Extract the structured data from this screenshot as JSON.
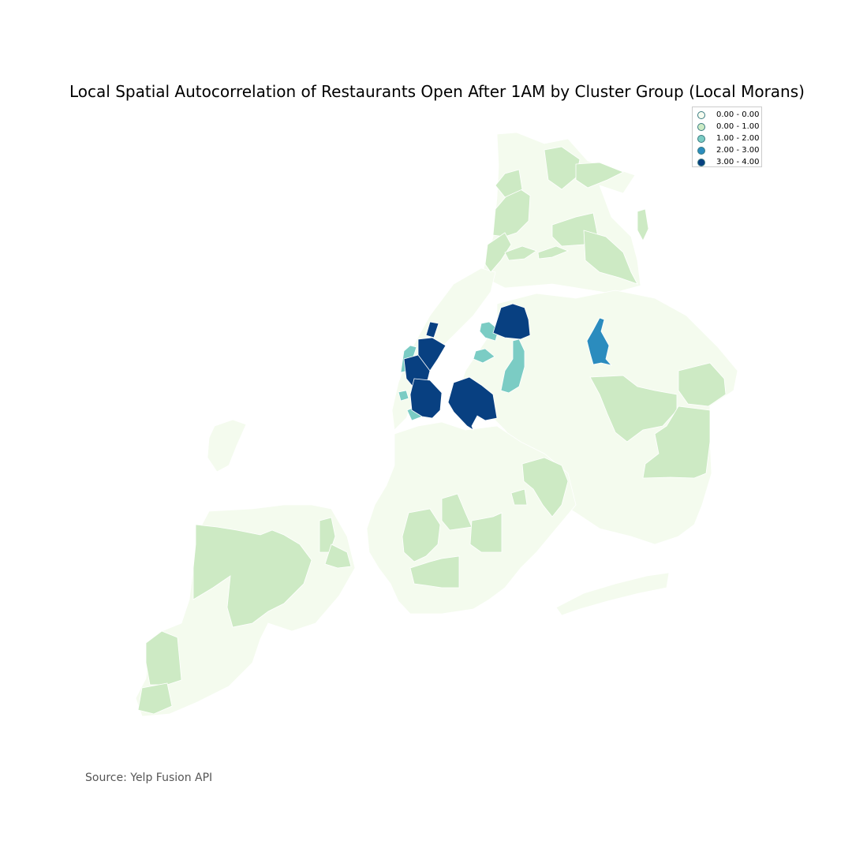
{
  "title": "Local Spatial Autocorrelation of Restaurants Open After 1AM by Cluster Group (Local Morans)",
  "source": "Source: Yelp Fusion API",
  "legend": {
    "items": [
      {
        "label": "0.00 - 0.00",
        "color": "#f7fcf0"
      },
      {
        "label": "0.00 - 1.00",
        "color": "#ccebc5"
      },
      {
        "label": "1.00 - 2.00",
        "color": "#7bccc4"
      },
      {
        "label": "2.00 - 3.00",
        "color": "#2b8cbe"
      },
      {
        "label": "3.00 - 4.00",
        "color": "#084081"
      }
    ]
  },
  "colors": {
    "class_0": "#f7fcf0",
    "class_1": "#ccebc5",
    "class_2": "#7bccc4",
    "class_3": "#2b8cbe",
    "class_4": "#084081"
  }
}
